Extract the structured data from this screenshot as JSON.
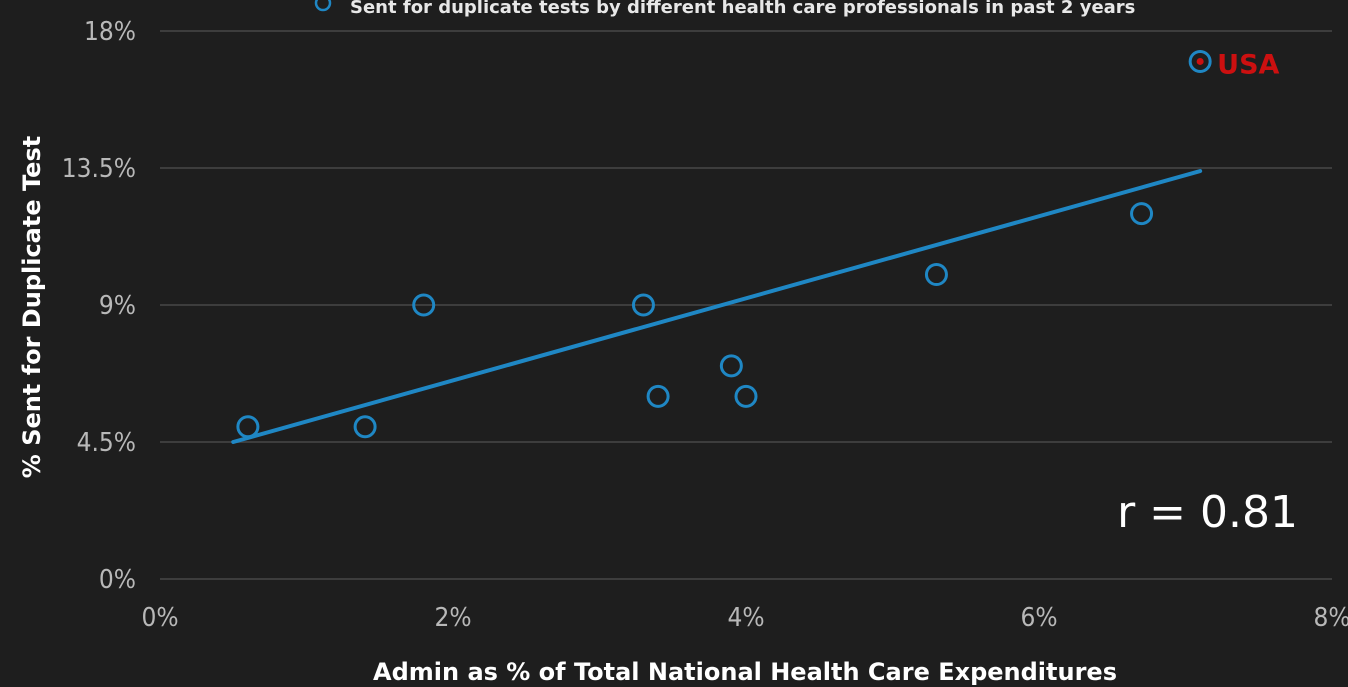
{
  "chart_data": {
    "type": "scatter",
    "legend": {
      "label": "Sent for duplicate tests by different health care professionals in past 2 years",
      "placement": "top"
    },
    "xlabel": "Admin as % of Total National Health Care Expenditures",
    "ylabel": "% Sent for Duplicate Test",
    "xlim": [
      0,
      8
    ],
    "ylim": [
      0,
      18
    ],
    "x_ticks": [
      {
        "value": 0,
        "label": "0%"
      },
      {
        "value": 2,
        "label": "2%"
      },
      {
        "value": 4,
        "label": "4%"
      },
      {
        "value": 6,
        "label": "6%"
      },
      {
        "value": 8,
        "label": "8%"
      }
    ],
    "y_ticks": [
      {
        "value": 0,
        "label": "0%"
      },
      {
        "value": 4.5,
        "label": "4.5%"
      },
      {
        "value": 9,
        "label": "9%"
      },
      {
        "value": 13.5,
        "label": "13.5%"
      },
      {
        "value": 18,
        "label": "18%"
      }
    ],
    "grid": "horizontal",
    "points": [
      {
        "x": 0.6,
        "y": 5.0
      },
      {
        "x": 1.4,
        "y": 5.0
      },
      {
        "x": 1.8,
        "y": 9.0
      },
      {
        "x": 3.3,
        "y": 9.0
      },
      {
        "x": 3.4,
        "y": 6.0
      },
      {
        "x": 3.9,
        "y": 7.0
      },
      {
        "x": 4.0,
        "y": 6.0
      },
      {
        "x": 5.3,
        "y": 10.0
      },
      {
        "x": 6.7,
        "y": 12.0
      }
    ],
    "highlight_point": {
      "x": 7.1,
      "y": 17.0,
      "label": "USA"
    },
    "trendline": {
      "x": [
        0.5,
        7.1
      ],
      "y": [
        4.5,
        13.4
      ]
    },
    "annotation": "r = 0.81",
    "colors": {
      "background": "#1e1e1e",
      "marker": "#1f87c4",
      "trendline": "#1f87c4",
      "highlight": "#cc1010",
      "grid": "#3d3d3d"
    }
  }
}
